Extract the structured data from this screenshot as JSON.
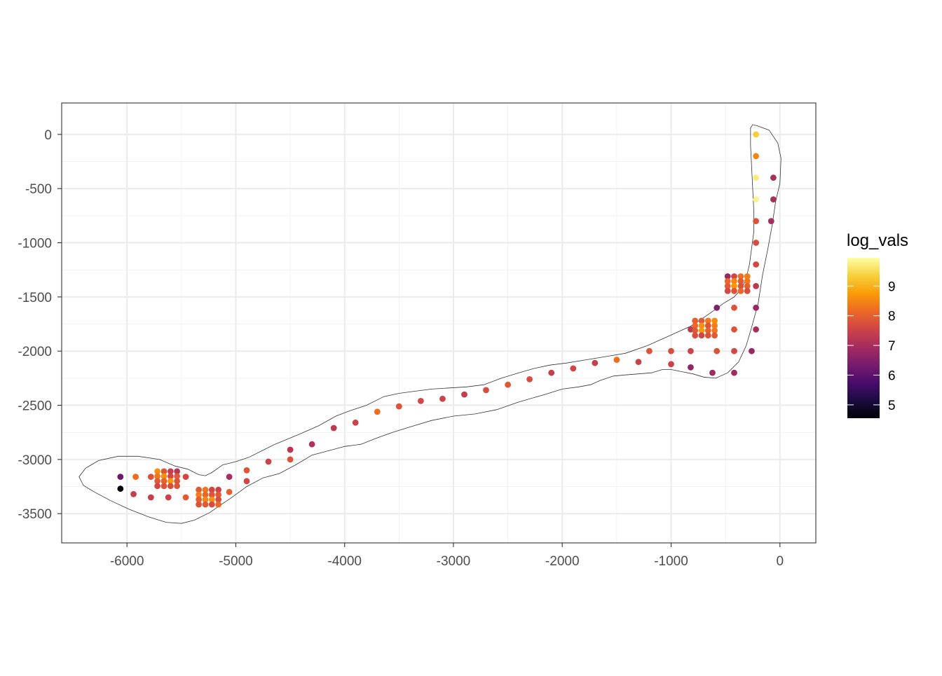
{
  "chart_data": {
    "type": "scatter",
    "title": "",
    "xlabel": "",
    "ylabel": "",
    "xlim": [
      -6600,
      330
    ],
    "ylim": [
      -3770,
      290
    ],
    "x_ticks": [
      -6000,
      -5000,
      -4000,
      -3000,
      -2000,
      -1000,
      0
    ],
    "x_tick_labels": [
      "-6000",
      "-5000",
      "-4000",
      "-3000",
      "-2000",
      "-1000",
      "0"
    ],
    "y_ticks": [
      0,
      -500,
      -1000,
      -1500,
      -2000,
      -2500,
      -3000,
      -3500
    ],
    "y_tick_labels": [
      "0",
      "-500",
      "-1000",
      "-1500",
      "-2000",
      "-2500",
      "-3000",
      "-3500"
    ],
    "grid": true,
    "legend": {
      "title": "log_vals",
      "position": "right",
      "colorbar_range": [
        4.55,
        9.95
      ],
      "ticks": [
        5,
        6,
        7,
        8,
        9
      ],
      "tick_labels": [
        "5",
        "6",
        "7",
        "8",
        "9"
      ],
      "palette": "inferno",
      "colors": [
        "#000004",
        "#1b0c41",
        "#4a0c6b",
        "#781c6d",
        "#a52c60",
        "#cf4446",
        "#ed6925",
        "#fb9b06",
        "#f7d13d",
        "#fcffa4"
      ]
    },
    "outline": {
      "x": [
        -210,
        -100,
        -20,
        10,
        0,
        -40,
        -70,
        -110,
        -160,
        -200,
        -260,
        -310,
        -380,
        -480,
        -590,
        -700,
        -800,
        -900,
        -1000,
        -1080,
        -1180,
        -1300,
        -1420,
        -1530,
        -1650,
        -1740,
        -1850,
        -2000,
        -2160,
        -2400,
        -2600,
        -2800,
        -3000,
        -3200,
        -3400,
        -3560,
        -3700,
        -3850,
        -4000,
        -4150,
        -4300,
        -4450,
        -4600,
        -4750,
        -4900,
        -5050,
        -5140,
        -5240,
        -5380,
        -5500,
        -5640,
        -5800,
        -5980,
        -6150,
        -6300,
        -6400,
        -6440,
        -6380,
        -6260,
        -6080,
        -5900,
        -5700,
        -5560,
        -5440,
        -5340,
        -5280,
        -5220,
        -5120,
        -5000,
        -4880,
        -4760,
        -4640,
        -4520,
        -4400,
        -4240,
        -4080,
        -3950,
        -3800,
        -3640,
        -3500,
        -3350,
        -3200,
        -3040,
        -2880,
        -2720,
        -2560,
        -2400,
        -2260,
        -2120,
        -1960,
        -1780,
        -1600,
        -1420,
        -1220,
        -1020,
        -820,
        -700,
        -600,
        -520,
        -420,
        -350,
        -310,
        -280,
        -260,
        -240,
        -240,
        -250,
        -260,
        -270,
        -270,
        -250,
        -210
      ],
      "y": [
        80,
        40,
        -80,
        -220,
        -450,
        -620,
        -830,
        -1050,
        -1300,
        -1560,
        -1780,
        -1950,
        -2100,
        -2200,
        -2250,
        -2240,
        -2210,
        -2190,
        -2170,
        -2170,
        -2200,
        -2210,
        -2220,
        -2230,
        -2270,
        -2310,
        -2330,
        -2350,
        -2400,
        -2470,
        -2540,
        -2580,
        -2600,
        -2640,
        -2700,
        -2750,
        -2800,
        -2860,
        -2880,
        -2920,
        -2960,
        -3050,
        -3130,
        -3170,
        -3250,
        -3360,
        -3420,
        -3490,
        -3560,
        -3590,
        -3580,
        -3530,
        -3460,
        -3380,
        -3300,
        -3240,
        -3160,
        -3080,
        -3010,
        -2970,
        -2970,
        -3000,
        -3060,
        -3090,
        -3140,
        -3150,
        -3120,
        -3050,
        -3020,
        -2980,
        -2920,
        -2860,
        -2810,
        -2760,
        -2690,
        -2600,
        -2550,
        -2500,
        -2420,
        -2390,
        -2370,
        -2350,
        -2340,
        -2330,
        -2310,
        -2250,
        -2200,
        -2160,
        -2130,
        -2110,
        -2080,
        -2050,
        -2020,
        -1950,
        -1860,
        -1770,
        -1690,
        -1620,
        -1560,
        -1500,
        -1420,
        -1330,
        -1200,
        -1050,
        -900,
        -700,
        -500,
        -300,
        -100,
        60,
        90,
        80
      ]
    },
    "series": [
      {
        "points": [
          [
            -220,
            0,
            9.3
          ],
          [
            -220,
            -200,
            8.5
          ],
          [
            -220,
            -400,
            9.7
          ],
          [
            -220,
            -600,
            9.8
          ],
          [
            -60,
            -400,
            7.0
          ],
          [
            -60,
            -600,
            7.0
          ],
          [
            -80,
            -800,
            7.0
          ],
          [
            -220,
            -800,
            7.8
          ],
          [
            -220,
            -1000,
            7.7
          ],
          [
            -220,
            -1200,
            7.6
          ],
          [
            -220,
            -1400,
            7.3
          ],
          [
            -220,
            -1600,
            6.8
          ],
          [
            -220,
            -1800,
            7.0
          ],
          [
            -260,
            -2000,
            6.8
          ],
          [
            -420,
            -1600,
            7.8
          ],
          [
            -420,
            -1800,
            7.8
          ],
          [
            -420,
            -2000,
            7.6
          ],
          [
            -420,
            -2200,
            6.9
          ],
          [
            -580,
            -1600,
            6.5
          ],
          [
            -580,
            -2000,
            7.8
          ],
          [
            -620,
            -2200,
            6.9
          ],
          [
            -820,
            -1800,
            7.3
          ],
          [
            -820,
            -2000,
            7.5
          ],
          [
            -820,
            -2150,
            6.7
          ],
          [
            -1000,
            -2000,
            7.7
          ],
          [
            -1000,
            -2120,
            7.5
          ],
          [
            -1200,
            -2000,
            7.8
          ],
          [
            -1300,
            -2100,
            7.5
          ],
          [
            -1500,
            -2080,
            8.2
          ],
          [
            -1700,
            -2110,
            7.4
          ],
          [
            -1900,
            -2160,
            7.6
          ],
          [
            -2100,
            -2200,
            7.4
          ],
          [
            -2300,
            -2260,
            7.7
          ],
          [
            -2500,
            -2310,
            7.9
          ],
          [
            -2700,
            -2360,
            7.7
          ],
          [
            -2900,
            -2400,
            7.4
          ],
          [
            -3100,
            -2440,
            7.5
          ],
          [
            -3300,
            -2460,
            7.6
          ],
          [
            -3500,
            -2510,
            7.8
          ],
          [
            -3700,
            -2560,
            8.2
          ],
          [
            -3900,
            -2660,
            7.5
          ],
          [
            -4100,
            -2710,
            7.3
          ],
          [
            -4300,
            -2860,
            7.1
          ],
          [
            -4500,
            -2910,
            7.2
          ],
          [
            -4500,
            -3000,
            7.8
          ],
          [
            -4700,
            -3020,
            7.5
          ],
          [
            -4900,
            -3100,
            7.8
          ],
          [
            -4900,
            -3200,
            7.6
          ],
          [
            -5060,
            -3160,
            7.0
          ],
          [
            -5060,
            -3300,
            8.0
          ],
          [
            -5460,
            -3160,
            7.6
          ],
          [
            -5460,
            -3350,
            7.9
          ],
          [
            -5620,
            -3350,
            7.5
          ],
          [
            -5780,
            -3160,
            7.8
          ],
          [
            -5780,
            -3350,
            7.4
          ],
          [
            -5920,
            -3160,
            8.2
          ],
          [
            -5940,
            -3320,
            7.4
          ],
          [
            -6060,
            -3160,
            6.2
          ],
          [
            -6060,
            -3270,
            4.6
          ],
          [
            -300,
            -1310,
            8.4
          ],
          [
            -360,
            -1310,
            8.2
          ],
          [
            -420,
            -1310,
            7.6
          ],
          [
            -480,
            -1310,
            6.8
          ],
          [
            -300,
            -1355,
            8.3
          ],
          [
            -360,
            -1355,
            7.9
          ],
          [
            -420,
            -1355,
            8.5
          ],
          [
            -480,
            -1355,
            8.1
          ],
          [
            -300,
            -1400,
            8.0
          ],
          [
            -360,
            -1400,
            7.8
          ],
          [
            -420,
            -1400,
            8.7
          ],
          [
            -480,
            -1400,
            7.9
          ],
          [
            -300,
            -1445,
            7.7
          ],
          [
            -360,
            -1445,
            8.1
          ],
          [
            -420,
            -1445,
            7.8
          ],
          [
            -480,
            -1445,
            7.6
          ],
          [
            -600,
            -1720,
            8.6
          ],
          [
            -660,
            -1720,
            8.3
          ],
          [
            -720,
            -1720,
            7.9
          ],
          [
            -780,
            -1720,
            8.0
          ],
          [
            -600,
            -1765,
            8.4
          ],
          [
            -660,
            -1765,
            7.8
          ],
          [
            -720,
            -1765,
            8.6
          ],
          [
            -780,
            -1765,
            8.1
          ],
          [
            -600,
            -1810,
            8.3
          ],
          [
            -660,
            -1810,
            8.0
          ],
          [
            -720,
            -1810,
            8.7
          ],
          [
            -780,
            -1810,
            7.9
          ],
          [
            -600,
            -1855,
            7.9
          ],
          [
            -660,
            -1855,
            7.8
          ],
          [
            -720,
            -1855,
            7.6
          ],
          [
            -780,
            -1855,
            7.7
          ],
          [
            -5720,
            -3110,
            8.6
          ],
          [
            -5660,
            -3110,
            7.8
          ],
          [
            -5600,
            -3110,
            7.4
          ],
          [
            -5540,
            -3110,
            7.2
          ],
          [
            -5720,
            -3155,
            8.3
          ],
          [
            -5660,
            -3155,
            8.6
          ],
          [
            -5600,
            -3155,
            7.6
          ],
          [
            -5540,
            -3155,
            7.9
          ],
          [
            -5720,
            -3200,
            7.9
          ],
          [
            -5660,
            -3200,
            8.0
          ],
          [
            -5600,
            -3200,
            8.7
          ],
          [
            -5540,
            -3200,
            7.8
          ],
          [
            -5720,
            -3245,
            7.6
          ],
          [
            -5660,
            -3245,
            7.8
          ],
          [
            -5600,
            -3245,
            7.7
          ],
          [
            -5540,
            -3245,
            7.8
          ],
          [
            -5340,
            -3280,
            7.9
          ],
          [
            -5280,
            -3280,
            8.3
          ],
          [
            -5220,
            -3280,
            7.6
          ],
          [
            -5160,
            -3280,
            7.5
          ],
          [
            -5340,
            -3325,
            8.4
          ],
          [
            -5280,
            -3325,
            8.1
          ],
          [
            -5220,
            -3325,
            7.8
          ],
          [
            -5160,
            -3325,
            7.9
          ],
          [
            -5340,
            -3370,
            8.0
          ],
          [
            -5280,
            -3370,
            8.5
          ],
          [
            -5220,
            -3370,
            8.6
          ],
          [
            -5160,
            -3370,
            7.7
          ],
          [
            -5340,
            -3415,
            7.8
          ],
          [
            -5280,
            -3415,
            7.9
          ],
          [
            -5220,
            -3415,
            7.7
          ],
          [
            -5160,
            -3415,
            8.1
          ]
        ]
      }
    ]
  }
}
